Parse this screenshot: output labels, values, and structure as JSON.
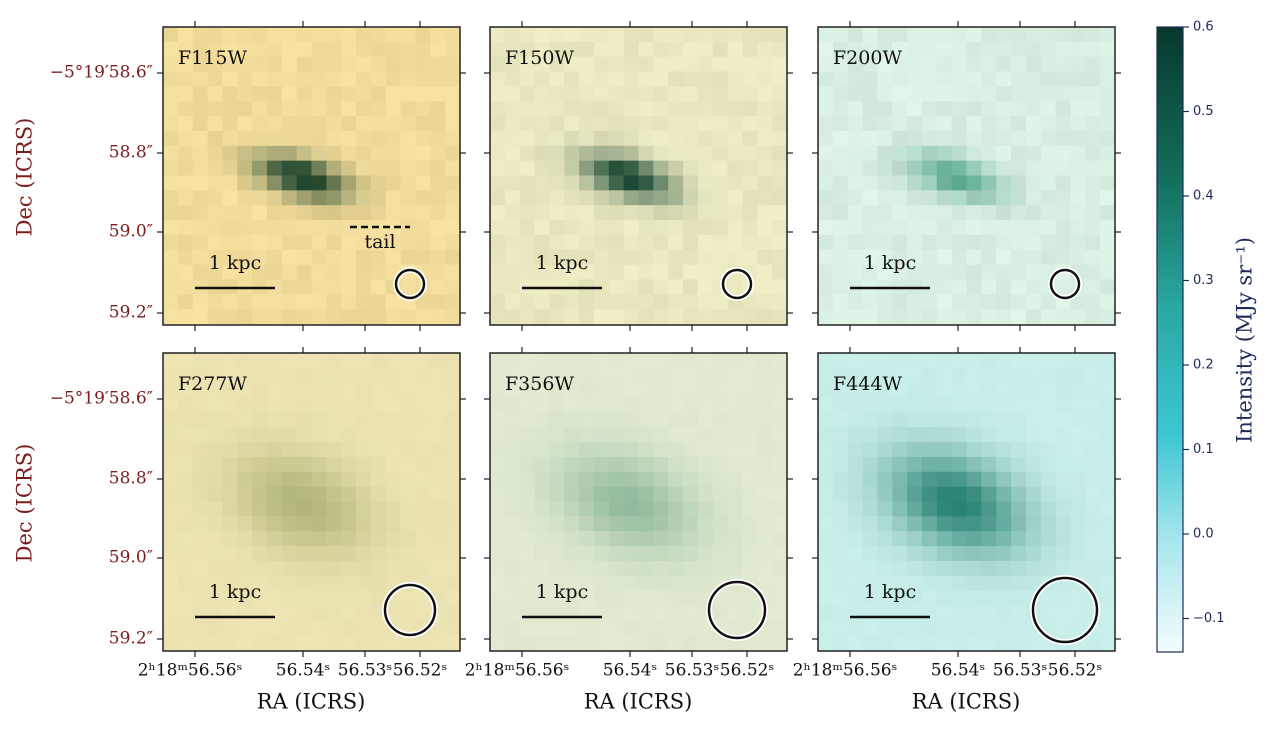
{
  "figure": {
    "panels": [
      {
        "label": "F115W",
        "scale": "1 kpc",
        "annotation": "tail"
      },
      {
        "label": "F150W",
        "scale": "1 kpc"
      },
      {
        "label": "F200W",
        "scale": "1 kpc"
      },
      {
        "label": "F277W",
        "scale": "1 kpc"
      },
      {
        "label": "F356W",
        "scale": "1 kpc"
      },
      {
        "label": "F444W",
        "scale": "1 kpc"
      }
    ],
    "y_label": "Dec (ICRS)",
    "x_label": "RA (ICRS)",
    "dec_ticks": [
      "−5°19′58.6″",
      "58.8″",
      "59.0″",
      "59.2″"
    ],
    "ra_ticks": [
      "2ʰ18ᵐ56.56ˢ",
      "56.54ˢ",
      "56.53ˢ",
      "56.52ˢ"
    ],
    "colorbar": {
      "label": "Intensity (MJy sr⁻¹)",
      "ticks": [
        "0.6",
        "0.5",
        "0.4",
        "0.3",
        "0.2",
        "0.1",
        "0.0",
        "−0.1"
      ]
    }
  }
}
